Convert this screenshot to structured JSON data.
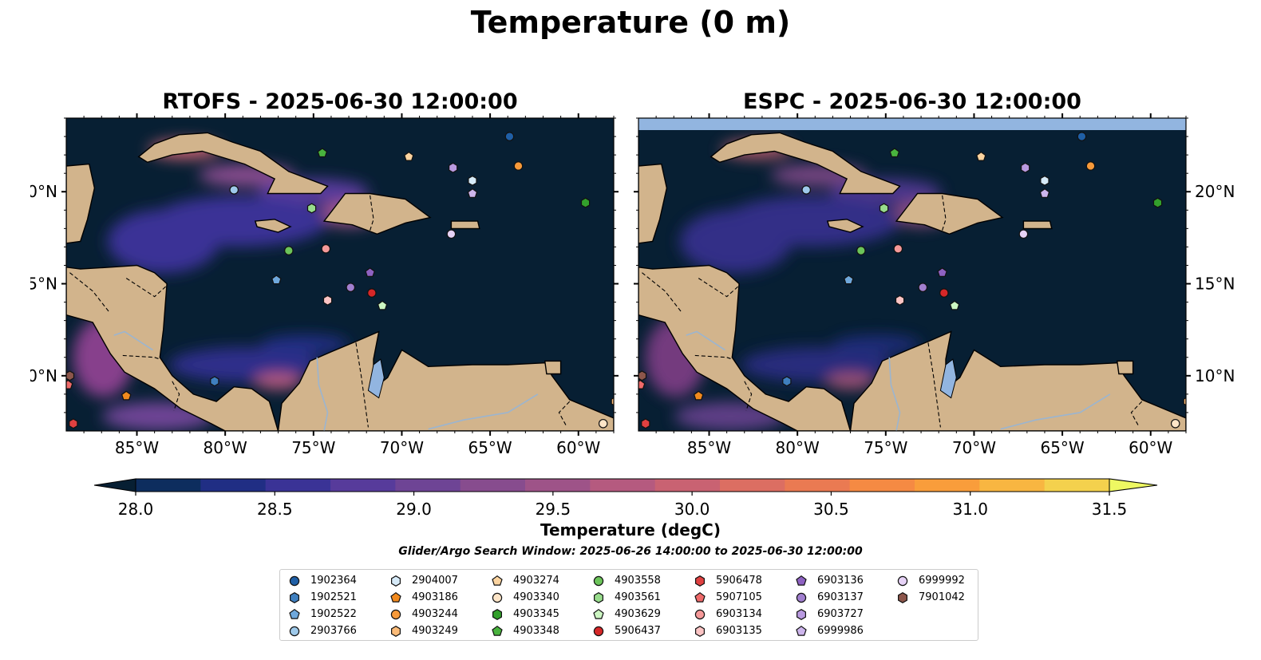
{
  "figure": {
    "title": "Temperature (0 m)",
    "colorbar_label": "Temperature (degC)",
    "search_window": "Glider/Argo Search Window: 2025-06-26 14:00:00 to 2025-06-30 12:00:00"
  },
  "panels": [
    {
      "title": "RTOFS - 2025-06-30 12:00:00"
    },
    {
      "title": "ESPC - 2025-06-30 12:00:00"
    }
  ],
  "map": {
    "lon_range": [
      -89,
      -58
    ],
    "lat_range": [
      7,
      24
    ],
    "lon_ticks": [
      "85°W",
      "80°W",
      "75°W",
      "70°W",
      "65°W",
      "60°W"
    ],
    "lat_ticks": [
      "20°N",
      "15°N",
      "10°N"
    ],
    "land_color": "#d2b48c",
    "ocean_color": "#071f33"
  },
  "colorbar": {
    "ticks": [
      "28.0",
      "28.5",
      "29.0",
      "29.5",
      "30.0",
      "30.5",
      "31.0",
      "31.5"
    ],
    "range": [
      27.75,
      31.75
    ],
    "colors": [
      "#071f33",
      "#0d2d5e",
      "#202e84",
      "#3a3396",
      "#573b9b",
      "#6e4495",
      "#874c8e",
      "#9e5388",
      "#b55a7f",
      "#c96272",
      "#dc6e62",
      "#ea7a52",
      "#f58a43",
      "#f99d3b",
      "#f8b641",
      "#f4d14d",
      "#eef862"
    ]
  },
  "floats": [
    {
      "id": "1902364",
      "marker": "circle",
      "color": "#1f5fa6",
      "lon": -63.9,
      "lat": 23.0
    },
    {
      "id": "1902521",
      "marker": "hexagon",
      "color": "#3f7fbf",
      "lon": -80.6,
      "lat": 9.7
    },
    {
      "id": "1902522",
      "marker": "pentagon",
      "color": "#6fa8dc",
      "lon": -77.1,
      "lat": 15.2
    },
    {
      "id": "2903766",
      "marker": "circle",
      "color": "#9ec9ea",
      "lon": -79.5,
      "lat": 20.1
    },
    {
      "id": "2904007",
      "marker": "hexagon",
      "color": "#d6eaf8",
      "lon": -66.0,
      "lat": 20.6
    },
    {
      "id": "4903186",
      "marker": "pentagon",
      "color": "#f28a1e",
      "lon": -85.6,
      "lat": 8.9
    },
    {
      "id": "4903244",
      "marker": "circle",
      "color": "#f79a3a",
      "lon": -63.4,
      "lat": 21.4
    },
    {
      "id": "4903249",
      "marker": "hexagon",
      "color": "#fbbb78",
      "lon": -57.9,
      "lat": 8.6
    },
    {
      "id": "4903274",
      "marker": "pentagon",
      "color": "#fcd4a0",
      "lon": -69.6,
      "lat": 21.9
    },
    {
      "id": "4903340",
      "marker": "circle",
      "color": "#fde5c8",
      "lon": -58.6,
      "lat": 7.4
    },
    {
      "id": "4903345",
      "marker": "hexagon",
      "color": "#33a02c",
      "lon": -59.6,
      "lat": 19.4
    },
    {
      "id": "4903348",
      "marker": "pentagon",
      "color": "#49b33e",
      "lon": -74.5,
      "lat": 22.1
    },
    {
      "id": "4903558",
      "marker": "circle",
      "color": "#6cc45a",
      "lon": -76.4,
      "lat": 16.8
    },
    {
      "id": "4903561",
      "marker": "hexagon",
      "color": "#98dc8c",
      "lon": -75.1,
      "lat": 19.1
    },
    {
      "id": "4903629",
      "marker": "pentagon",
      "color": "#ccf6c2",
      "lon": -71.1,
      "lat": 13.8
    },
    {
      "id": "5906437",
      "marker": "circle",
      "color": "#d62728",
      "lon": -71.7,
      "lat": 14.5
    },
    {
      "id": "5906478",
      "marker": "hexagon",
      "color": "#e04141",
      "lon": -88.6,
      "lat": 7.4
    },
    {
      "id": "5907105",
      "marker": "pentagon",
      "color": "#ef6a6a",
      "lon": -88.9,
      "lat": 9.5
    },
    {
      "id": "6903134",
      "marker": "circle",
      "color": "#f59999",
      "lon": -74.3,
      "lat": 16.9
    },
    {
      "id": "6903135",
      "marker": "hexagon",
      "color": "#fbc4c4",
      "lon": -74.2,
      "lat": 14.1
    },
    {
      "id": "6903136",
      "marker": "pentagon",
      "color": "#8e62c2",
      "lon": -71.8,
      "lat": 15.6
    },
    {
      "id": "6903137",
      "marker": "circle",
      "color": "#a17fcf",
      "lon": -72.9,
      "lat": 14.8
    },
    {
      "id": "6903727",
      "marker": "hexagon",
      "color": "#b99ae0",
      "lon": -67.1,
      "lat": 21.3
    },
    {
      "id": "6999986",
      "marker": "pentagon",
      "color": "#cdb5ec",
      "lon": -66.0,
      "lat": 19.9
    },
    {
      "id": "6999992",
      "marker": "circle",
      "color": "#e6d2f6",
      "lon": -67.2,
      "lat": 17.7
    },
    {
      "id": "7901042",
      "marker": "hexagon",
      "color": "#8c564b",
      "lon": -88.8,
      "lat": 10.0
    }
  ]
}
